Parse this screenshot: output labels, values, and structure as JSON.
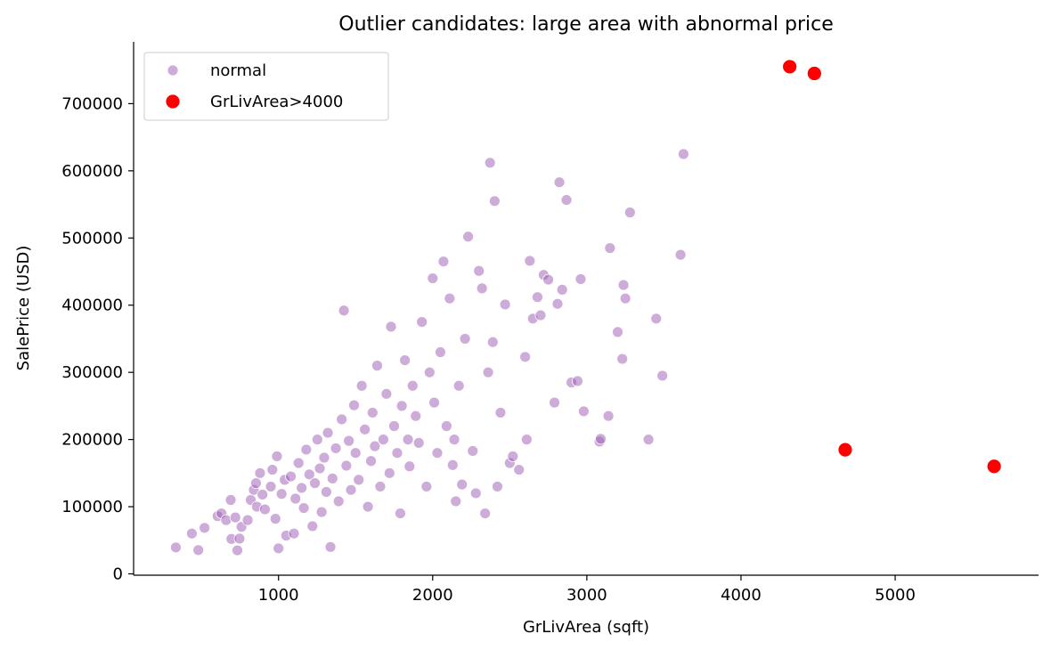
{
  "chart_data": {
    "type": "scatter",
    "title": "Outlier candidates: large area with abnormal price",
    "xlabel": "GrLivArea (sqft)",
    "ylabel": "SalePrice (USD)",
    "xlim": [
      60,
      5930
    ],
    "ylim": [
      -2000,
      792000
    ],
    "xticks": [
      1000,
      2000,
      3000,
      4000,
      5000
    ],
    "yticks": [
      0,
      100000,
      200000,
      300000,
      400000,
      500000,
      600000,
      700000
    ],
    "xtick_labels": [
      "1000",
      "2000",
      "3000",
      "4000",
      "5000"
    ],
    "ytick_labels": [
      "0",
      "100000",
      "200000",
      "300000",
      "400000",
      "500000",
      "600000",
      "700000"
    ],
    "grid": false,
    "legend_position": "top-left",
    "series": [
      {
        "name": "normal",
        "color": "#9b59b6",
        "opacity": 0.5,
        "points": [
          [
            334,
            39300
          ],
          [
            438,
            60000
          ],
          [
            480,
            35311
          ],
          [
            520,
            68500
          ],
          [
            605,
            86000
          ],
          [
            630,
            90000
          ],
          [
            660,
            80000
          ],
          [
            690,
            110000
          ],
          [
            694,
            52000
          ],
          [
            720,
            84000
          ],
          [
            733,
            35000
          ],
          [
            747,
            52500
          ],
          [
            760,
            70000
          ],
          [
            800,
            80000
          ],
          [
            820,
            110000
          ],
          [
            840,
            125000
          ],
          [
            854,
            135000
          ],
          [
            860,
            100000
          ],
          [
            880,
            150000
          ],
          [
            896,
            118000
          ],
          [
            912,
            96000
          ],
          [
            950,
            130000
          ],
          [
            960,
            155000
          ],
          [
            980,
            82000
          ],
          [
            990,
            175000
          ],
          [
            1000,
            38000
          ],
          [
            1020,
            119000
          ],
          [
            1040,
            140000
          ],
          [
            1050,
            57000
          ],
          [
            1080,
            145000
          ],
          [
            1100,
            60000
          ],
          [
            1110,
            112000
          ],
          [
            1130,
            165000
          ],
          [
            1150,
            128000
          ],
          [
            1164,
            98000
          ],
          [
            1180,
            185000
          ],
          [
            1200,
            148000
          ],
          [
            1220,
            71000
          ],
          [
            1236,
            135000
          ],
          [
            1252,
            200000
          ],
          [
            1268,
            157000
          ],
          [
            1280,
            92000
          ],
          [
            1296,
            173000
          ],
          [
            1310,
            122000
          ],
          [
            1320,
            210000
          ],
          [
            1337,
            40000
          ],
          [
            1350,
            142000
          ],
          [
            1372,
            187000
          ],
          [
            1390,
            108000
          ],
          [
            1410,
            230000
          ],
          [
            1424,
            392000
          ],
          [
            1440,
            161000
          ],
          [
            1456,
            198000
          ],
          [
            1470,
            125000
          ],
          [
            1490,
            251000
          ],
          [
            1500,
            180000
          ],
          [
            1520,
            140000
          ],
          [
            1540,
            280000
          ],
          [
            1560,
            215000
          ],
          [
            1580,
            100000
          ],
          [
            1600,
            168000
          ],
          [
            1610,
            240000
          ],
          [
            1625,
            190000
          ],
          [
            1640,
            310000
          ],
          [
            1660,
            130000
          ],
          [
            1680,
            200000
          ],
          [
            1700,
            268000
          ],
          [
            1720,
            150000
          ],
          [
            1730,
            368000
          ],
          [
            1750,
            220000
          ],
          [
            1770,
            180000
          ],
          [
            1790,
            90000
          ],
          [
            1800,
            250000
          ],
          [
            1820,
            318000
          ],
          [
            1840,
            200000
          ],
          [
            1850,
            160000
          ],
          [
            1870,
            280000
          ],
          [
            1890,
            235000
          ],
          [
            1910,
            195000
          ],
          [
            1930,
            375000
          ],
          [
            1960,
            130000
          ],
          [
            1980,
            300000
          ],
          [
            2000,
            440000
          ],
          [
            2010,
            255000
          ],
          [
            2030,
            180000
          ],
          [
            2050,
            330000
          ],
          [
            2070,
            465000
          ],
          [
            2090,
            220000
          ],
          [
            2110,
            410000
          ],
          [
            2130,
            162000
          ],
          [
            2140,
            200000
          ],
          [
            2150,
            108000
          ],
          [
            2170,
            280000
          ],
          [
            2190,
            133000
          ],
          [
            2210,
            350000
          ],
          [
            2230,
            502000
          ],
          [
            2260,
            183000
          ],
          [
            2280,
            120000
          ],
          [
            2300,
            451000
          ],
          [
            2320,
            425000
          ],
          [
            2340,
            90000
          ],
          [
            2360,
            300000
          ],
          [
            2372,
            612000
          ],
          [
            2390,
            345000
          ],
          [
            2402,
            555000
          ],
          [
            2420,
            130000
          ],
          [
            2440,
            240000
          ],
          [
            2470,
            401000
          ],
          [
            2500,
            165000
          ],
          [
            2520,
            175000
          ],
          [
            2560,
            155000
          ],
          [
            2600,
            323000
          ],
          [
            2610,
            200000
          ],
          [
            2630,
            466000
          ],
          [
            2650,
            380000
          ],
          [
            2680,
            412000
          ],
          [
            2700,
            385000
          ],
          [
            2720,
            445000
          ],
          [
            2750,
            438000
          ],
          [
            2790,
            255000
          ],
          [
            2810,
            402000
          ],
          [
            2822,
            582933
          ],
          [
            2840,
            423000
          ],
          [
            2868,
            556581
          ],
          [
            2900,
            285000
          ],
          [
            2940,
            287000
          ],
          [
            2960,
            438780
          ],
          [
            2980,
            242000
          ],
          [
            3082,
            197000
          ],
          [
            3090,
            201000
          ],
          [
            3140,
            235000
          ],
          [
            3150,
            485000
          ],
          [
            3200,
            360000
          ],
          [
            3230,
            320000
          ],
          [
            3238,
            430000
          ],
          [
            3250,
            410000
          ],
          [
            3280,
            538000
          ],
          [
            3400,
            200000
          ],
          [
            3450,
            380000
          ],
          [
            3490,
            295000
          ],
          [
            3608,
            475000
          ],
          [
            3627,
            625000
          ]
        ]
      },
      {
        "name": "GrLivArea>4000",
        "color": "#ff0000",
        "opacity": 1,
        "points": [
          [
            4316,
            755000
          ],
          [
            4476,
            745000
          ],
          [
            4676,
            184750
          ],
          [
            5642,
            160000
          ]
        ]
      }
    ]
  }
}
